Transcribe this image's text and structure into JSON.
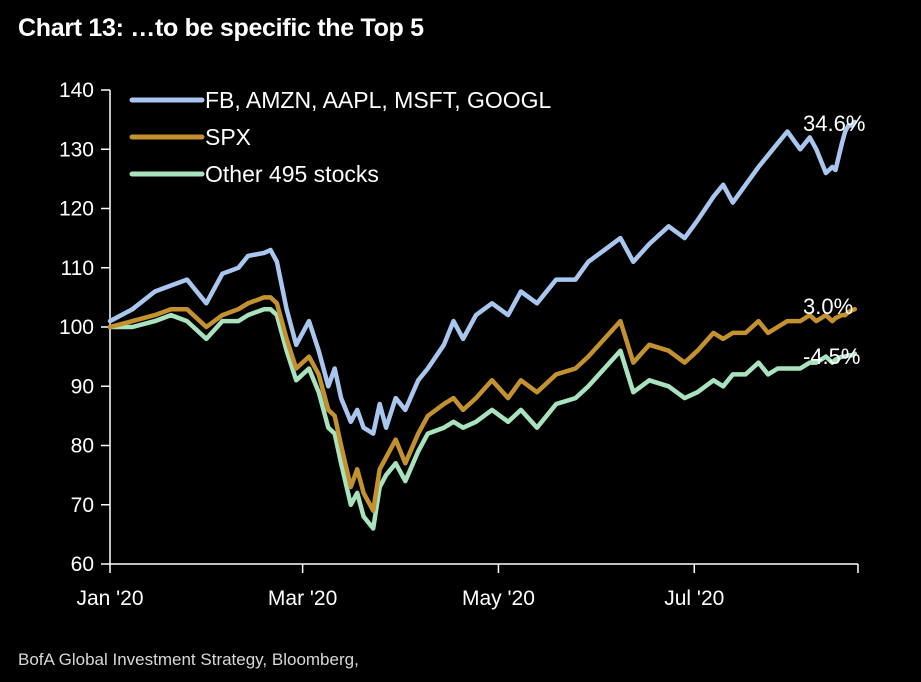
{
  "title": "Chart 13: …to be specific the Top 5",
  "source": "BofA Global Investment Strategy, Bloomberg,",
  "chart_data": {
    "type": "line",
    "title": "Chart 13: …to be specific the Top 5",
    "xlabel": "",
    "ylabel": "",
    "ylim": [
      60,
      140
    ],
    "yticks": [
      60,
      70,
      80,
      90,
      100,
      110,
      120,
      130,
      140
    ],
    "xlim": [
      "2020-01-01",
      "2020-08-21"
    ],
    "xticks": [
      {
        "date": "2020-01-01",
        "label": "Jan '20"
      },
      {
        "date": "2020-03-01",
        "label": "Mar '20"
      },
      {
        "date": "2020-05-01",
        "label": "May '20"
      },
      {
        "date": "2020-07-01",
        "label": "Jul '20"
      }
    ],
    "grid": false,
    "legend": "top-left",
    "series": [
      {
        "name": "FB, AMZN, AAPL, MSFT, GOOGL",
        "color": "#a9c6ee",
        "end_label": "34.6%",
        "points": [
          [
            "2020-01-01",
            101
          ],
          [
            "2020-01-08",
            103
          ],
          [
            "2020-01-15",
            106
          ],
          [
            "2020-01-20",
            107
          ],
          [
            "2020-01-25",
            108
          ],
          [
            "2020-01-31",
            104
          ],
          [
            "2020-02-05",
            109
          ],
          [
            "2020-02-10",
            110
          ],
          [
            "2020-02-13",
            112
          ],
          [
            "2020-02-18",
            112.5
          ],
          [
            "2020-02-20",
            113
          ],
          [
            "2020-02-22",
            111
          ],
          [
            "2020-02-25",
            103
          ],
          [
            "2020-02-28",
            97
          ],
          [
            "2020-03-03",
            101
          ],
          [
            "2020-03-06",
            96
          ],
          [
            "2020-03-09",
            90
          ],
          [
            "2020-03-11",
            93
          ],
          [
            "2020-03-13",
            88
          ],
          [
            "2020-03-16",
            84
          ],
          [
            "2020-03-18",
            86
          ],
          [
            "2020-03-20",
            83
          ],
          [
            "2020-03-23",
            82
          ],
          [
            "2020-03-25",
            87
          ],
          [
            "2020-03-27",
            83
          ],
          [
            "2020-03-30",
            88
          ],
          [
            "2020-04-02",
            86
          ],
          [
            "2020-04-06",
            91
          ],
          [
            "2020-04-09",
            93
          ],
          [
            "2020-04-14",
            97
          ],
          [
            "2020-04-17",
            101
          ],
          [
            "2020-04-20",
            98
          ],
          [
            "2020-04-24",
            102
          ],
          [
            "2020-04-29",
            104
          ],
          [
            "2020-05-04",
            102
          ],
          [
            "2020-05-08",
            106
          ],
          [
            "2020-05-13",
            104
          ],
          [
            "2020-05-19",
            108
          ],
          [
            "2020-05-25",
            108
          ],
          [
            "2020-05-29",
            111
          ],
          [
            "2020-06-03",
            113
          ],
          [
            "2020-06-08",
            115
          ],
          [
            "2020-06-12",
            111
          ],
          [
            "2020-06-17",
            114
          ],
          [
            "2020-06-23",
            117
          ],
          [
            "2020-06-28",
            115
          ],
          [
            "2020-07-02",
            118
          ],
          [
            "2020-07-07",
            122
          ],
          [
            "2020-07-10",
            124
          ],
          [
            "2020-07-13",
            121
          ],
          [
            "2020-07-17",
            124
          ],
          [
            "2020-07-21",
            127
          ],
          [
            "2020-07-24",
            129
          ],
          [
            "2020-07-27",
            131
          ],
          [
            "2020-07-30",
            133
          ],
          [
            "2020-08-03",
            130
          ],
          [
            "2020-08-06",
            132
          ],
          [
            "2020-08-08",
            130
          ],
          [
            "2020-08-11",
            126
          ],
          [
            "2020-08-13",
            127
          ],
          [
            "2020-08-14",
            126.5
          ],
          [
            "2020-08-16",
            131
          ],
          [
            "2020-08-17",
            133
          ],
          [
            "2020-08-18",
            134
          ],
          [
            "2020-08-19",
            134
          ],
          [
            "2020-08-20",
            134.6
          ]
        ]
      },
      {
        "name": "SPX",
        "color": "#c3922e",
        "end_label": "3.0%",
        "points": [
          [
            "2020-01-01",
            100
          ],
          [
            "2020-01-08",
            101
          ],
          [
            "2020-01-15",
            102
          ],
          [
            "2020-01-20",
            103
          ],
          [
            "2020-01-25",
            103
          ],
          [
            "2020-01-31",
            100
          ],
          [
            "2020-02-05",
            102
          ],
          [
            "2020-02-10",
            103
          ],
          [
            "2020-02-13",
            104
          ],
          [
            "2020-02-18",
            105
          ],
          [
            "2020-02-20",
            105
          ],
          [
            "2020-02-22",
            104
          ],
          [
            "2020-02-25",
            98
          ],
          [
            "2020-02-28",
            93
          ],
          [
            "2020-03-03",
            95
          ],
          [
            "2020-03-06",
            92
          ],
          [
            "2020-03-09",
            86
          ],
          [
            "2020-03-11",
            85
          ],
          [
            "2020-03-13",
            80
          ],
          [
            "2020-03-16",
            73
          ],
          [
            "2020-03-18",
            76
          ],
          [
            "2020-03-20",
            72
          ],
          [
            "2020-03-23",
            69
          ],
          [
            "2020-03-25",
            76
          ],
          [
            "2020-03-27",
            78
          ],
          [
            "2020-03-30",
            81
          ],
          [
            "2020-04-02",
            77
          ],
          [
            "2020-04-06",
            82
          ],
          [
            "2020-04-09",
            85
          ],
          [
            "2020-04-14",
            87
          ],
          [
            "2020-04-17",
            88
          ],
          [
            "2020-04-20",
            86
          ],
          [
            "2020-04-24",
            88
          ],
          [
            "2020-04-29",
            91
          ],
          [
            "2020-05-04",
            88
          ],
          [
            "2020-05-08",
            91
          ],
          [
            "2020-05-13",
            89
          ],
          [
            "2020-05-19",
            92
          ],
          [
            "2020-05-25",
            93
          ],
          [
            "2020-05-29",
            95
          ],
          [
            "2020-06-03",
            98
          ],
          [
            "2020-06-08",
            101
          ],
          [
            "2020-06-12",
            94
          ],
          [
            "2020-06-17",
            97
          ],
          [
            "2020-06-23",
            96
          ],
          [
            "2020-06-28",
            94
          ],
          [
            "2020-07-02",
            96
          ],
          [
            "2020-07-07",
            99
          ],
          [
            "2020-07-10",
            98
          ],
          [
            "2020-07-13",
            99
          ],
          [
            "2020-07-17",
            99
          ],
          [
            "2020-07-21",
            101
          ],
          [
            "2020-07-24",
            99
          ],
          [
            "2020-07-27",
            100
          ],
          [
            "2020-07-30",
            101
          ],
          [
            "2020-08-03",
            101
          ],
          [
            "2020-08-06",
            102
          ],
          [
            "2020-08-08",
            101
          ],
          [
            "2020-08-11",
            102
          ],
          [
            "2020-08-13",
            101
          ],
          [
            "2020-08-14",
            101.5
          ],
          [
            "2020-08-16",
            102
          ],
          [
            "2020-08-17",
            102
          ],
          [
            "2020-08-18",
            102.5
          ],
          [
            "2020-08-19",
            102.8
          ],
          [
            "2020-08-20",
            103
          ]
        ]
      },
      {
        "name": "Other 495 stocks",
        "color": "#a8e3bd",
        "end_label": "-4.5%",
        "points": [
          [
            "2020-01-01",
            100
          ],
          [
            "2020-01-08",
            100
          ],
          [
            "2020-01-15",
            101
          ],
          [
            "2020-01-20",
            102
          ],
          [
            "2020-01-25",
            101
          ],
          [
            "2020-01-31",
            98
          ],
          [
            "2020-02-05",
            101
          ],
          [
            "2020-02-10",
            101
          ],
          [
            "2020-02-13",
            102
          ],
          [
            "2020-02-18",
            103
          ],
          [
            "2020-02-20",
            103
          ],
          [
            "2020-02-22",
            102
          ],
          [
            "2020-02-25",
            96
          ],
          [
            "2020-02-28",
            91
          ],
          [
            "2020-03-03",
            93
          ],
          [
            "2020-03-06",
            89
          ],
          [
            "2020-03-09",
            83
          ],
          [
            "2020-03-11",
            82
          ],
          [
            "2020-03-13",
            77
          ],
          [
            "2020-03-16",
            70
          ],
          [
            "2020-03-18",
            72
          ],
          [
            "2020-03-20",
            68
          ],
          [
            "2020-03-23",
            66
          ],
          [
            "2020-03-25",
            73
          ],
          [
            "2020-03-27",
            75
          ],
          [
            "2020-03-30",
            77
          ],
          [
            "2020-04-02",
            74
          ],
          [
            "2020-04-06",
            79
          ],
          [
            "2020-04-09",
            82
          ],
          [
            "2020-04-14",
            83
          ],
          [
            "2020-04-17",
            84
          ],
          [
            "2020-04-20",
            83
          ],
          [
            "2020-04-24",
            84
          ],
          [
            "2020-04-29",
            86
          ],
          [
            "2020-05-04",
            84
          ],
          [
            "2020-05-08",
            86
          ],
          [
            "2020-05-13",
            83
          ],
          [
            "2020-05-19",
            87
          ],
          [
            "2020-05-25",
            88
          ],
          [
            "2020-05-29",
            90
          ],
          [
            "2020-06-03",
            93
          ],
          [
            "2020-06-08",
            96
          ],
          [
            "2020-06-12",
            89
          ],
          [
            "2020-06-17",
            91
          ],
          [
            "2020-06-23",
            90
          ],
          [
            "2020-06-28",
            88
          ],
          [
            "2020-07-02",
            89
          ],
          [
            "2020-07-07",
            91
          ],
          [
            "2020-07-10",
            90
          ],
          [
            "2020-07-13",
            92
          ],
          [
            "2020-07-17",
            92
          ],
          [
            "2020-07-21",
            94
          ],
          [
            "2020-07-24",
            92
          ],
          [
            "2020-07-27",
            93
          ],
          [
            "2020-07-30",
            93
          ],
          [
            "2020-08-03",
            93
          ],
          [
            "2020-08-06",
            94
          ],
          [
            "2020-08-08",
            94
          ],
          [
            "2020-08-11",
            95
          ],
          [
            "2020-08-13",
            94
          ],
          [
            "2020-08-14",
            94.5
          ],
          [
            "2020-08-16",
            95
          ],
          [
            "2020-08-17",
            95
          ],
          [
            "2020-08-18",
            95.2
          ],
          [
            "2020-08-19",
            95.2
          ],
          [
            "2020-08-20",
            95.5
          ]
        ]
      }
    ]
  }
}
